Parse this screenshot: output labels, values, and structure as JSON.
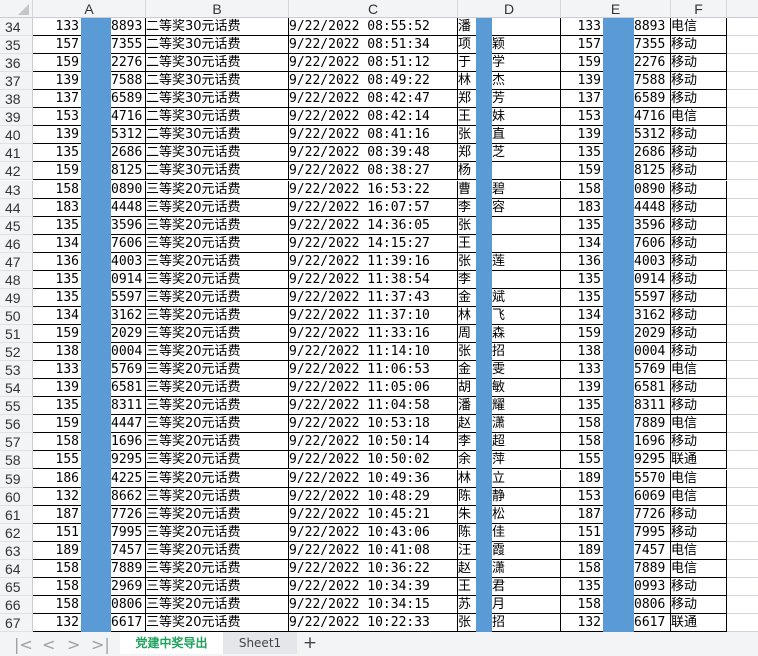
{
  "columns": [
    "A",
    "B",
    "C",
    "D",
    "E",
    "F"
  ],
  "rows": [
    {
      "n": "34",
      "a1": "133",
      "a2": "8893",
      "b": "二等奖30元话费",
      "c": "9/22/2022  08:55:52",
      "d1": "潘",
      "d2": "",
      "e1": "133",
      "e2": "8893",
      "f": "电信"
    },
    {
      "n": "35",
      "a1": "157",
      "a2": "7355",
      "b": "二等奖30元话费",
      "c": "9/22/2022  08:51:34",
      "d1": "项",
      "d2": "颖",
      "e1": "157",
      "e2": "7355",
      "f": "移动"
    },
    {
      "n": "36",
      "a1": "159",
      "a2": "2276",
      "b": "二等奖30元话费",
      "c": "9/22/2022  08:51:12",
      "d1": "于",
      "d2": "学",
      "e1": "159",
      "e2": "2276",
      "f": "移动"
    },
    {
      "n": "37",
      "a1": "139",
      "a2": "7588",
      "b": "二等奖30元话费",
      "c": "9/22/2022  08:49:22",
      "d1": "林",
      "d2": "杰",
      "e1": "139",
      "e2": "7588",
      "f": "移动"
    },
    {
      "n": "38",
      "a1": "137",
      "a2": "6589",
      "b": "二等奖30元话费",
      "c": "9/22/2022  08:42:47",
      "d1": "郑",
      "d2": "芳",
      "e1": "137",
      "e2": "6589",
      "f": "移动"
    },
    {
      "n": "39",
      "a1": "153",
      "a2": "4716",
      "b": "二等奖30元话费",
      "c": "9/22/2022  08:42:14",
      "d1": "王",
      "d2": "妹",
      "e1": "153",
      "e2": "4716",
      "f": "电信"
    },
    {
      "n": "40",
      "a1": "139",
      "a2": "5312",
      "b": "二等奖30元话费",
      "c": "9/22/2022  08:41:16",
      "d1": "张",
      "d2": "直",
      "e1": "139",
      "e2": "5312",
      "f": "移动"
    },
    {
      "n": "41",
      "a1": "135",
      "a2": "2686",
      "b": "二等奖30元话费",
      "c": "9/22/2022  08:39:48",
      "d1": "郑",
      "d2": "芝",
      "e1": "135",
      "e2": "2686",
      "f": "移动"
    },
    {
      "n": "42",
      "a1": "159",
      "a2": "8125",
      "b": "二等奖30元话费",
      "c": "9/22/2022  08:38:27",
      "d1": "杨",
      "d2": "",
      "e1": "159",
      "e2": "8125",
      "f": "移动"
    },
    {
      "n": "43",
      "a1": "158",
      "a2": "0890",
      "b": "三等奖20元话费",
      "c": "9/22/2022  16:53:22",
      "d1": "曹",
      "d2": "碧",
      "e1": "158",
      "e2": "0890",
      "f": "移动"
    },
    {
      "n": "44",
      "a1": "183",
      "a2": "4448",
      "b": "三等奖20元话费",
      "c": "9/22/2022  16:07:57",
      "d1": "李",
      "d2": "容",
      "e1": "183",
      "e2": "4448",
      "f": "移动"
    },
    {
      "n": "45",
      "a1": "135",
      "a2": "3596",
      "b": "三等奖20元话费",
      "c": "9/22/2022  14:36:05",
      "d1": "张",
      "d2": "",
      "e1": "135",
      "e2": "3596",
      "f": "移动"
    },
    {
      "n": "46",
      "a1": "134",
      "a2": "7606",
      "b": "三等奖20元话费",
      "c": "9/22/2022  14:15:27",
      "d1": "王",
      "d2": "",
      "e1": "134",
      "e2": "7606",
      "f": "移动"
    },
    {
      "n": "47",
      "a1": "136",
      "a2": "4003",
      "b": "三等奖20元话费",
      "c": "9/22/2022  11:39:16",
      "d1": "张",
      "d2": "莲",
      "e1": "136",
      "e2": "4003",
      "f": "移动"
    },
    {
      "n": "48",
      "a1": "135",
      "a2": "0914",
      "b": "三等奖20元话费",
      "c": "9/22/2022  11:38:54",
      "d1": "李",
      "d2": "",
      "e1": "135",
      "e2": "0914",
      "f": "移动"
    },
    {
      "n": "49",
      "a1": "135",
      "a2": "5597",
      "b": "三等奖20元话费",
      "c": "9/22/2022  11:37:43",
      "d1": "金",
      "d2": "斌",
      "e1": "135",
      "e2": "5597",
      "f": "移动"
    },
    {
      "n": "50",
      "a1": "134",
      "a2": "3162",
      "b": "三等奖20元话费",
      "c": "9/22/2022  11:37:10",
      "d1": "林",
      "d2": "飞",
      "e1": "134",
      "e2": "3162",
      "f": "移动"
    },
    {
      "n": "51",
      "a1": "159",
      "a2": "2029",
      "b": "三等奖20元话费",
      "c": "9/22/2022  11:33:16",
      "d1": "周",
      "d2": "森",
      "e1": "159",
      "e2": "2029",
      "f": "移动"
    },
    {
      "n": "52",
      "a1": "138",
      "a2": "0004",
      "b": "三等奖20元话费",
      "c": "9/22/2022  11:14:10",
      "d1": "张",
      "d2": "招",
      "e1": "138",
      "e2": "0004",
      "f": "移动"
    },
    {
      "n": "53",
      "a1": "133",
      "a2": "5769",
      "b": "三等奖20元话费",
      "c": "9/22/2022  11:06:53",
      "d1": "金",
      "d2": "雯",
      "e1": "133",
      "e2": "5769",
      "f": "电信"
    },
    {
      "n": "54",
      "a1": "139",
      "a2": "6581",
      "b": "三等奖20元话费",
      "c": "9/22/2022  11:05:06",
      "d1": "胡",
      "d2": "敏",
      "e1": "139",
      "e2": "6581",
      "f": "移动"
    },
    {
      "n": "55",
      "a1": "135",
      "a2": "8311",
      "b": "三等奖20元话费",
      "c": "9/22/2022  11:04:58",
      "d1": "潘",
      "d2": "耀",
      "e1": "135",
      "e2": "8311",
      "f": "移动"
    },
    {
      "n": "56",
      "a1": "159",
      "a2": "4447",
      "b": "三等奖20元话费",
      "c": "9/22/2022  10:53:18",
      "d1": "赵",
      "d2": "潇",
      "e1": "158",
      "e2": "7889",
      "f": "电信"
    },
    {
      "n": "57",
      "a1": "158",
      "a2": "1696",
      "b": "三等奖20元话费",
      "c": "9/22/2022  10:50:14",
      "d1": "李",
      "d2": "超",
      "e1": "158",
      "e2": "1696",
      "f": "移动"
    },
    {
      "n": "58",
      "a1": "155",
      "a2": "9295",
      "b": "三等奖20元话费",
      "c": "9/22/2022  10:50:02",
      "d1": "余",
      "d2": "萍",
      "e1": "155",
      "e2": "9295",
      "f": "联通"
    },
    {
      "n": "59",
      "a1": "186",
      "a2": "4225",
      "b": "三等奖20元话费",
      "c": "9/22/2022  10:49:36",
      "d1": "林",
      "d2": "立",
      "e1": "189",
      "e2": "5570",
      "f": "电信"
    },
    {
      "n": "60",
      "a1": "132",
      "a2": "8662",
      "b": "三等奖20元话费",
      "c": "9/22/2022  10:48:29",
      "d1": "陈",
      "d2": "静",
      "e1": "153",
      "e2": "6069",
      "f": "电信"
    },
    {
      "n": "61",
      "a1": "187",
      "a2": "7726",
      "b": "三等奖20元话费",
      "c": "9/22/2022  10:45:21",
      "d1": "朱",
      "d2": "松",
      "e1": "187",
      "e2": "7726",
      "f": "移动"
    },
    {
      "n": "62",
      "a1": "151",
      "a2": "7995",
      "b": "三等奖20元话费",
      "c": "9/22/2022  10:43:06",
      "d1": "陈",
      "d2": "佳",
      "e1": "151",
      "e2": "7995",
      "f": "移动"
    },
    {
      "n": "63",
      "a1": "189",
      "a2": "7457",
      "b": "三等奖20元话费",
      "c": "9/22/2022  10:41:08",
      "d1": "汪",
      "d2": "霞",
      "e1": "189",
      "e2": "7457",
      "f": "电信"
    },
    {
      "n": "64",
      "a1": "158",
      "a2": "7889",
      "b": "三等奖20元话费",
      "c": "9/22/2022  10:36:22",
      "d1": "赵",
      "d2": "潇",
      "e1": "158",
      "e2": "7889",
      "f": "电信"
    },
    {
      "n": "65",
      "a1": "158",
      "a2": "2969",
      "b": "三等奖20元话费",
      "c": "9/22/2022  10:34:39",
      "d1": "王",
      "d2": "君",
      "e1": "135",
      "e2": "0993",
      "f": "移动"
    },
    {
      "n": "66",
      "a1": "158",
      "a2": "0806",
      "b": "三等奖20元话费",
      "c": "9/22/2022  10:34:15",
      "d1": "苏",
      "d2": "月",
      "e1": "158",
      "e2": "0806",
      "f": "移动"
    },
    {
      "n": "67",
      "a1": "132",
      "a2": "6617",
      "b": "三等奖20元话费",
      "c": "9/22/2022  10:22:33",
      "d1": "张",
      "d2": "招",
      "e1": "132",
      "e2": "6617",
      "f": "联通"
    }
  ],
  "sheet_tabs": [
    {
      "label": "党建中奖导出",
      "active": true
    },
    {
      "label": "Sheet1",
      "active": false
    }
  ],
  "add_sheet": "+",
  "colors": {
    "redaction": "#5b9bd5",
    "active_tab": "#1fa35c"
  }
}
